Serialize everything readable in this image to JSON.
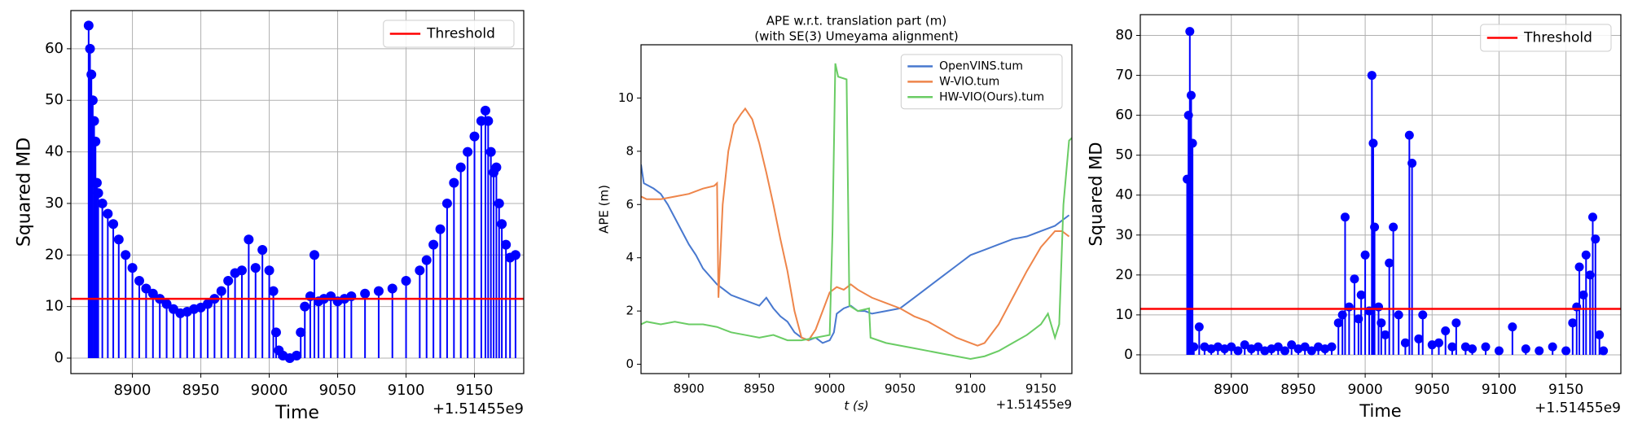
{
  "chart_data": [
    {
      "type": "stem",
      "xlabel": "Time",
      "ylabel": "Squared MD",
      "x_offset_label": "+1.51455e9",
      "xlim": [
        8855,
        9186
      ],
      "ylim": [
        -3,
        67.4
      ],
      "xticks": [
        8900,
        8950,
        9000,
        9050,
        9100,
        9150
      ],
      "yticks": [
        0,
        10,
        20,
        30,
        40,
        50,
        60
      ],
      "grid": true,
      "legend": "upper right",
      "color": "#0000ff",
      "threshold": {
        "name": "Threshold",
        "value": 11.5,
        "color": "#ff0000"
      },
      "x": [
        8868,
        8869,
        8870,
        8871,
        8872,
        8873,
        8874,
        8875,
        8878,
        8882,
        8886,
        8890,
        8895,
        8900,
        8905,
        8910,
        8915,
        8920,
        8925,
        8930,
        8935,
        8940,
        8945,
        8950,
        8955,
        8960,
        8965,
        8970,
        8975,
        8980,
        8985,
        8990,
        8995,
        9000,
        9003,
        9005,
        9007,
        9010,
        9015,
        9020,
        9023,
        9026,
        9030,
        9033,
        9036,
        9040,
        9045,
        9050,
        9055,
        9060,
        9070,
        9080,
        9090,
        9100,
        9110,
        9115,
        9120,
        9125,
        9130,
        9135,
        9140,
        9145,
        9150,
        9155,
        9158,
        9160,
        9162,
        9164,
        9166,
        9168,
        9170,
        9173,
        9176,
        9180
      ],
      "values": [
        64.5,
        60,
        55,
        50,
        46,
        42,
        34,
        32,
        30,
        28,
        26,
        23,
        20,
        17.5,
        15,
        13.5,
        12.5,
        11.5,
        10.5,
        9.5,
        8.7,
        9,
        9.5,
        9.8,
        10.5,
        11.5,
        13,
        15,
        16.5,
        17,
        23,
        17.5,
        21,
        17,
        13,
        5,
        1.5,
        0.5,
        0,
        0.5,
        5,
        10,
        12,
        20,
        11,
        11.5,
        12,
        11,
        11.5,
        12,
        12.5,
        13,
        13.5,
        15,
        17,
        19,
        22,
        25,
        30,
        34,
        37,
        40,
        43,
        46,
        48,
        46,
        40,
        36,
        37,
        30,
        26,
        22,
        19.5,
        20
      ]
    },
    {
      "type": "line",
      "title": "APE w.r.t. translation part (m)",
      "subtitle": "(with SE(3) Umeyama alignment)",
      "xlabel": "t (s)",
      "ylabel": "APE (m)",
      "x_offset_label": "+1.51455e9",
      "xlim": [
        8866,
        9172
      ],
      "ylim": [
        -0.35,
        12.0
      ],
      "xticks": [
        8900,
        8950,
        9000,
        9050,
        9100,
        9150
      ],
      "yticks": [
        0,
        2,
        4,
        6,
        8,
        10
      ],
      "grid": false,
      "legend": "upper right",
      "series": [
        {
          "name": "OpenVINS.tum",
          "color": "#4878cf",
          "x": [
            8866,
            8868,
            8875,
            8880,
            8885,
            8890,
            8895,
            8900,
            8905,
            8910,
            8915,
            8920,
            8925,
            8930,
            8935,
            8940,
            8945,
            8950,
            8955,
            8960,
            8965,
            8970,
            8975,
            8980,
            8985,
            8990,
            8995,
            9000,
            9003,
            9005,
            9010,
            9015,
            9020,
            9025,
            9030,
            9040,
            9050,
            9060,
            9070,
            9080,
            9090,
            9100,
            9110,
            9120,
            9130,
            9140,
            9150,
            9160,
            9170
          ],
          "values": [
            7.5,
            6.8,
            6.6,
            6.4,
            6.0,
            5.5,
            5.0,
            4.5,
            4.1,
            3.6,
            3.3,
            3.0,
            2.8,
            2.6,
            2.5,
            2.4,
            2.3,
            2.2,
            2.5,
            2.1,
            1.8,
            1.6,
            1.2,
            1.0,
            0.9,
            1.0,
            0.8,
            0.9,
            1.2,
            1.9,
            2.1,
            2.2,
            2.0,
            2.0,
            1.9,
            2.0,
            2.1,
            2.5,
            2.9,
            3.3,
            3.7,
            4.1,
            4.3,
            4.5,
            4.7,
            4.8,
            5.0,
            5.2,
            5.6
          ]
        },
        {
          "name": "W-VIO.tum",
          "color": "#ee854a",
          "x": [
            8866,
            8870,
            8880,
            8890,
            8900,
            8910,
            8918,
            8920,
            8921,
            8924,
            8928,
            8932,
            8937,
            8940,
            8945,
            8950,
            8955,
            8960,
            8965,
            8970,
            8975,
            8980,
            8985,
            8990,
            8995,
            9000,
            9005,
            9010,
            9015,
            9020,
            9030,
            9040,
            9050,
            9060,
            9070,
            9080,
            9090,
            9100,
            9105,
            9110,
            9120,
            9130,
            9140,
            9150,
            9160,
            9165,
            9170
          ],
          "values": [
            6.3,
            6.2,
            6.2,
            6.3,
            6.4,
            6.6,
            6.7,
            6.8,
            2.5,
            6.0,
            8.0,
            9.0,
            9.4,
            9.6,
            9.2,
            8.3,
            7.2,
            6.0,
            4.7,
            3.5,
            2.0,
            1.0,
            0.9,
            1.3,
            2.0,
            2.7,
            2.9,
            2.8,
            3.0,
            2.8,
            2.5,
            2.3,
            2.1,
            1.8,
            1.6,
            1.3,
            1.0,
            0.8,
            0.7,
            0.8,
            1.5,
            2.5,
            3.5,
            4.4,
            5.0,
            5.0,
            4.8
          ]
        },
        {
          "name": "HW-VIO(Ours).tum",
          "color": "#6acc64",
          "x": [
            8866,
            8870,
            8880,
            8890,
            8900,
            8910,
            8920,
            8930,
            8940,
            8950,
            8960,
            8970,
            8980,
            8990,
            9000,
            9002,
            9004,
            9006,
            9012,
            9014,
            9020,
            9028,
            9029,
            9040,
            9050,
            9060,
            9070,
            9080,
            9090,
            9100,
            9110,
            9120,
            9130,
            9140,
            9150,
            9155,
            9160,
            9163,
            9166,
            9170,
            9172
          ],
          "values": [
            1.5,
            1.6,
            1.5,
            1.6,
            1.5,
            1.5,
            1.4,
            1.2,
            1.1,
            1.0,
            1.1,
            0.9,
            0.9,
            1.0,
            1.1,
            5,
            11.3,
            10.8,
            10.7,
            2.2,
            2.0,
            2.1,
            1.0,
            0.8,
            0.7,
            0.6,
            0.5,
            0.4,
            0.3,
            0.2,
            0.3,
            0.5,
            0.8,
            1.1,
            1.5,
            1.9,
            1.0,
            1.5,
            6,
            8.4,
            8.5
          ]
        }
      ]
    },
    {
      "type": "stem",
      "xlabel": "Time",
      "ylabel": "Squared MD",
      "x_offset_label": "+1.51455e9",
      "xlim": [
        8832,
        9191
      ],
      "ylim": [
        -4.7,
        85.2
      ],
      "xticks": [
        8900,
        8950,
        9000,
        9050,
        9100,
        9150
      ],
      "yticks": [
        0,
        10,
        20,
        30,
        40,
        50,
        60,
        70,
        80
      ],
      "grid": true,
      "legend": "upper right",
      "color": "#0000ff",
      "threshold": {
        "name": "Threshold",
        "value": 11.5,
        "color": "#ff0000"
      },
      "x": [
        8867,
        8868,
        8869,
        8870,
        8871,
        8872,
        8876,
        8880,
        8885,
        8890,
        8895,
        8900,
        8905,
        8910,
        8915,
        8920,
        8925,
        8930,
        8935,
        8940,
        8945,
        8950,
        8955,
        8960,
        8965,
        8970,
        8975,
        8980,
        8983,
        8985,
        8988,
        8992,
        8995,
        8997,
        9000,
        9003,
        9005,
        9006,
        9007,
        9010,
        9012,
        9015,
        9018,
        9021,
        9025,
        9030,
        9033,
        9035,
        9040,
        9043,
        9050,
        9055,
        9060,
        9065,
        9068,
        9075,
        9080,
        9090,
        9100,
        9110,
        9120,
        9130,
        9140,
        9150,
        9155,
        9158,
        9160,
        9163,
        9165,
        9168,
        9170,
        9172,
        9175,
        9178
      ],
      "values": [
        44,
        60,
        81,
        65,
        53,
        2,
        7,
        2,
        1.5,
        2,
        1.5,
        2,
        1,
        2.5,
        1.5,
        2,
        1,
        1.5,
        2,
        1,
        2.5,
        1.5,
        2,
        1,
        2,
        1.5,
        2,
        8,
        10,
        34.5,
        12,
        19,
        9,
        15,
        25,
        11,
        70,
        53,
        32,
        12,
        8,
        5,
        23,
        32,
        10,
        3,
        55,
        48,
        4,
        10,
        2.5,
        3,
        6,
        2,
        8,
        2,
        1.5,
        2,
        1,
        7,
        1.5,
        1,
        2,
        1,
        8,
        12,
        22,
        15,
        25,
        20,
        34.5,
        29,
        5,
        1
      ]
    }
  ]
}
